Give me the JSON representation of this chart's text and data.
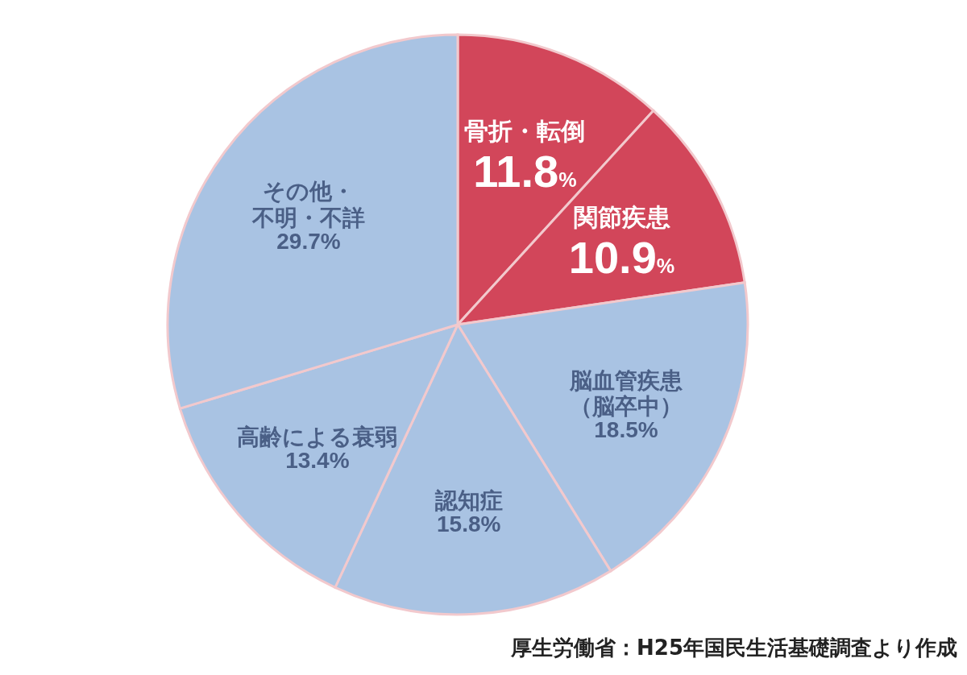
{
  "chart_data": {
    "type": "pie",
    "categories": [
      "骨折・転倒",
      "関節疾患",
      "脳血管疾患（脳卒中）",
      "認知症",
      "高齢による衰弱",
      "その他・不明・不詳"
    ],
    "values": [
      11.8,
      10.9,
      18.5,
      15.8,
      13.4,
      29.7
    ],
    "value_labels": [
      "11.8%",
      "10.9%",
      "18.5%",
      "15.8%",
      "13.4%",
      "29.7%"
    ],
    "colors": [
      "#d2465a",
      "#d2465a",
      "#a9c3e3",
      "#a9c3e3",
      "#a9c3e3",
      "#a9c3e3"
    ],
    "annotations": [
      "厚生労働省：H25年国民生活基礎調査より作成"
    ]
  }
}
